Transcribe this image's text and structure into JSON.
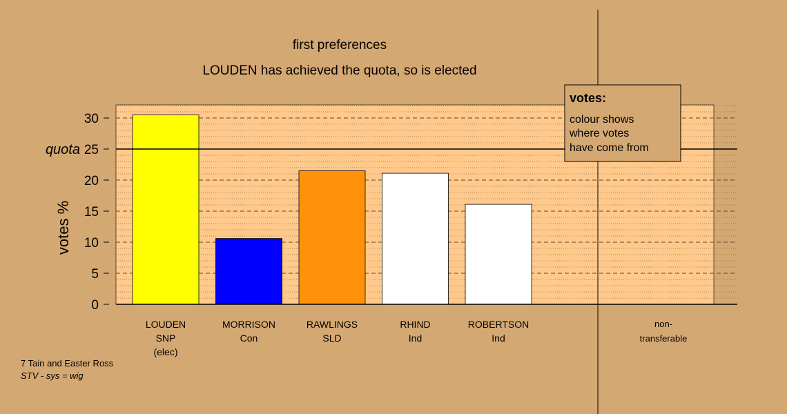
{
  "chart_data": {
    "type": "bar",
    "title": "first preferences",
    "subtitle": "LOUDEN has achieved the quota, so is elected",
    "ylabel": "votes %",
    "quota_label": "quota",
    "quota": 25,
    "ylim": [
      0,
      32
    ],
    "yticks": [
      0,
      5,
      10,
      15,
      20,
      25,
      30
    ],
    "grid": true,
    "categories": [
      {
        "lines": [
          "LOUDEN",
          "SNP",
          "(elec)"
        ],
        "value": 30.5,
        "color": "#ffff00"
      },
      {
        "lines": [
          "MORRISON",
          "Con"
        ],
        "value": 10.6,
        "color": "#0000ff"
      },
      {
        "lines": [
          "RAWLINGS",
          "SLD"
        ],
        "value": 21.5,
        "color": "#ff9208"
      },
      {
        "lines": [
          "RHIND",
          "Ind"
        ],
        "value": 21.1,
        "color": "#ffffff"
      },
      {
        "lines": [
          "ROBERTSON",
          "Ind"
        ],
        "value": 16.1,
        "color": "#ffffff"
      }
    ],
    "nontransferable": {
      "lines": [
        "non-",
        "transferable"
      ],
      "value": 0
    }
  },
  "legend": {
    "title": "votes:",
    "lines": [
      "colour shows",
      "where votes",
      "have come from"
    ]
  },
  "footer": {
    "line1": "7 Tain and Easter Ross",
    "line2": "STV - sys = wig"
  },
  "colors": {
    "background": "#d4a872",
    "plot_area": "#ffc98c",
    "axis": "#000000"
  }
}
